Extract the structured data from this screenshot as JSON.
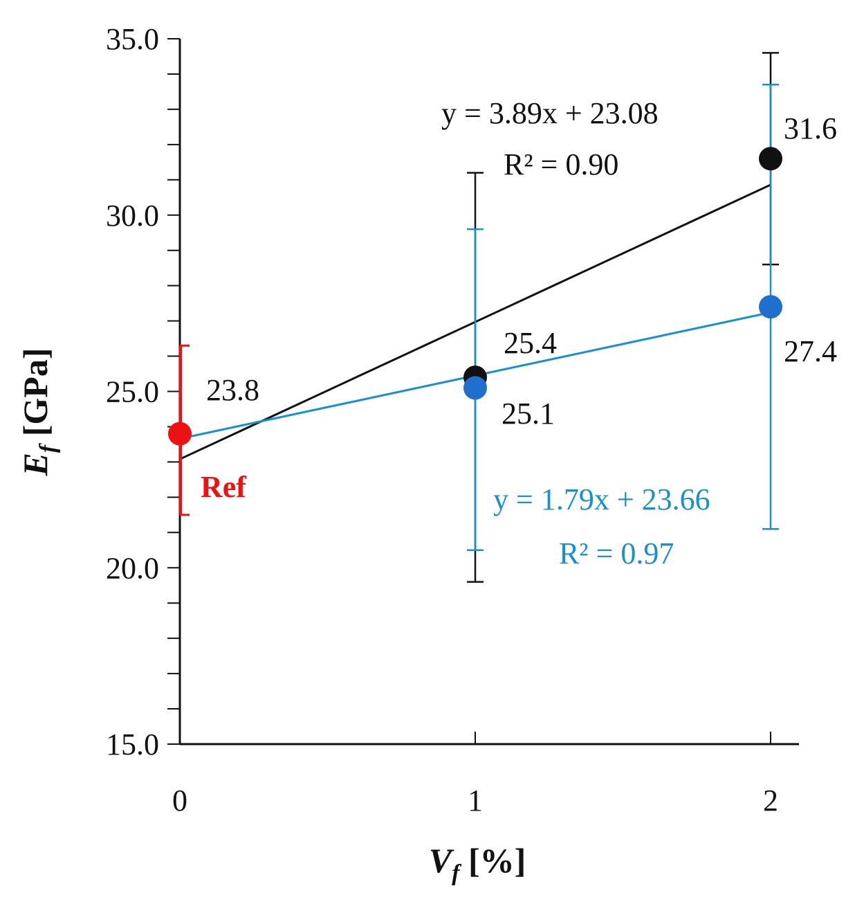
{
  "chart_data": {
    "type": "scatter",
    "xlabel_main": "V",
    "xlabel_sub": "f",
    "xlabel_unit": " [%]",
    "ylabel_main": "E",
    "ylabel_sub": "f",
    "ylabel_unit": " [GPa]",
    "xlim": [
      0,
      2.1
    ],
    "ylim": [
      15.0,
      35.0
    ],
    "x_ticks": [
      "0",
      "1",
      "2"
    ],
    "y_ticks": [
      "15.0",
      "20.0",
      "25.0",
      "30.0",
      "35.0"
    ],
    "y_minor_step": 1.0,
    "colors": {
      "black": "#111111",
      "blue": "#1a8fd0",
      "blue_marker": "#1e6fce",
      "red": "#ee1111"
    },
    "reference": {
      "name": "Ref",
      "x": 0,
      "y": 23.8,
      "y_low": 21.5,
      "y_high": 26.3,
      "label": "23.8",
      "color": "#ee1111"
    },
    "series": [
      {
        "name": "black",
        "color": "#111111",
        "x": [
          1,
          2
        ],
        "y": [
          25.4,
          31.6
        ],
        "labels": [
          "25.4",
          "31.6"
        ],
        "err_low": [
          19.6,
          28.6
        ],
        "err_high": [
          31.2,
          34.6
        ],
        "trend": {
          "slope": 3.89,
          "intercept": 23.08,
          "x_range": [
            0,
            2
          ]
        },
        "equation": "y = 3.89x + 23.08",
        "r2": "R² = 0.90"
      },
      {
        "name": "blue",
        "color": "#1a8fd0",
        "x": [
          1,
          2
        ],
        "y": [
          25.1,
          27.4
        ],
        "labels": [
          "25.1",
          "27.4"
        ],
        "err_low": [
          20.5,
          21.1
        ],
        "err_high": [
          29.6,
          33.7
        ],
        "trend": {
          "slope": 1.79,
          "intercept": 23.66,
          "x_range": [
            0,
            2
          ]
        },
        "equation": "y = 1.79x + 23.66",
        "r2": "R² = 0.97"
      }
    ]
  }
}
